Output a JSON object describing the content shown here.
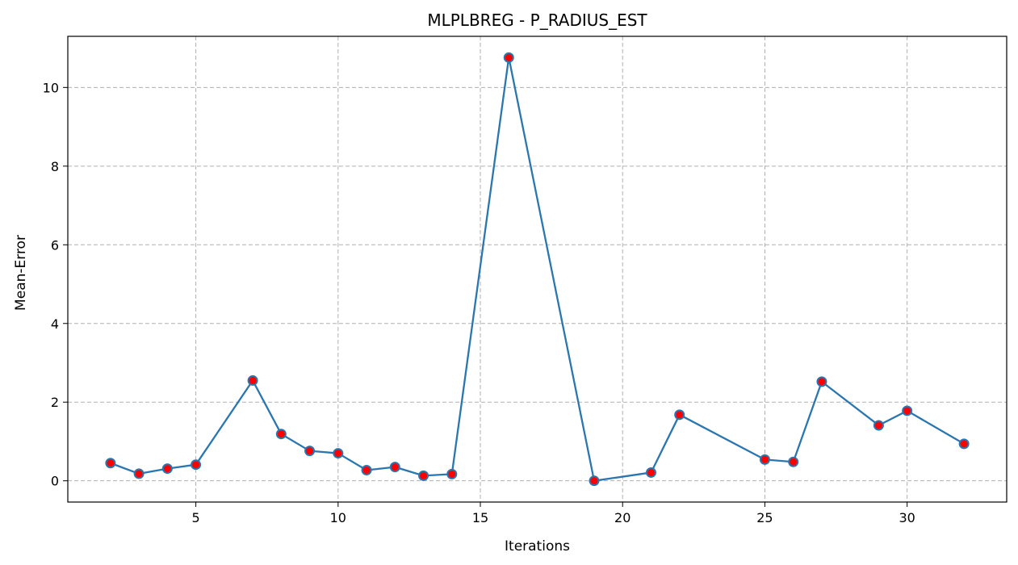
{
  "chart_data": {
    "type": "line",
    "title": "MLPLBREG - P_RADIUS_EST",
    "xlabel": "Iterations",
    "ylabel": "Mean-Error",
    "xlim": [
      0.5,
      33.5
    ],
    "ylim": [
      -0.54,
      11.3
    ],
    "xticks": [
      5,
      10,
      15,
      20,
      25,
      30
    ],
    "yticks": [
      0,
      2,
      4,
      6,
      8,
      10
    ],
    "grid": true,
    "series": [
      {
        "x": [
          2,
          3,
          4,
          5,
          7,
          8,
          9,
          10,
          11,
          12,
          13,
          14,
          16,
          19,
          21,
          22,
          25,
          26,
          27,
          29,
          30,
          32
        ],
        "y": [
          0.45,
          0.18,
          0.31,
          0.41,
          2.55,
          1.19,
          0.76,
          0.7,
          0.27,
          0.35,
          0.13,
          0.17,
          10.76,
          0.0,
          0.21,
          1.68,
          0.54,
          0.48,
          2.52,
          1.41,
          1.78,
          0.94
        ],
        "line_color": "#2a77b0",
        "marker_face": "#ff0000",
        "marker_edge": "#2a77b0"
      }
    ]
  }
}
